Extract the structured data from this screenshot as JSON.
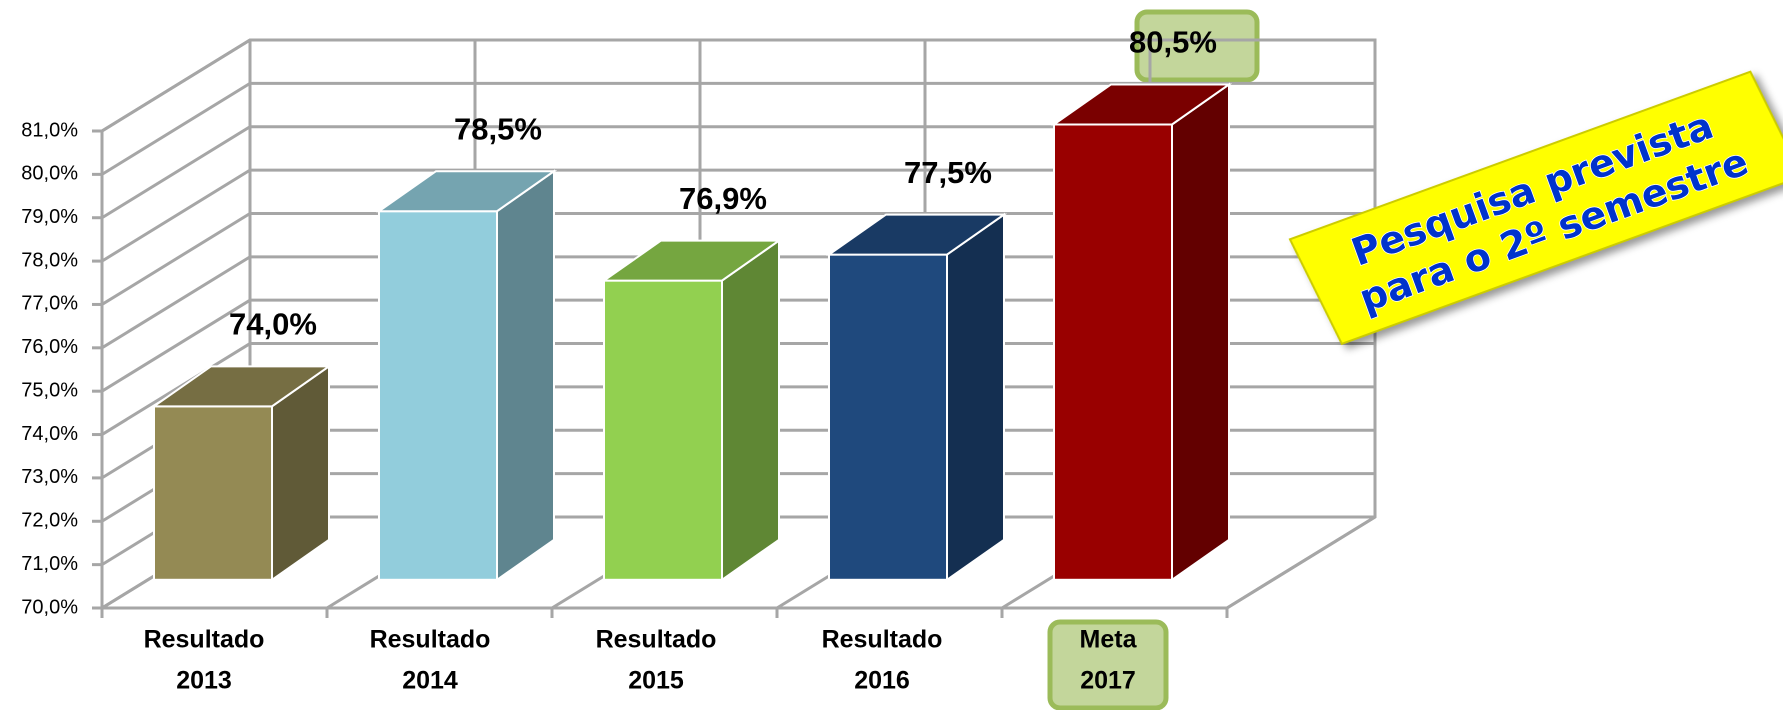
{
  "chart_data": {
    "type": "bar3d",
    "categories": [
      [
        "Resultado",
        "2013"
      ],
      [
        "Resultado",
        "2014"
      ],
      [
        "Resultado",
        "2015"
      ],
      [
        "Resultado",
        "2016"
      ],
      [
        "Meta",
        "2017"
      ]
    ],
    "values": [
      74.0,
      78.5,
      76.9,
      77.5,
      80.5
    ],
    "value_labels": [
      "74,0%",
      "78,5%",
      "76,9%",
      "77,5%",
      "80,5%"
    ],
    "colors": [
      "#948a54",
      "#92cddc",
      "#92d050",
      "#1f497d",
      "#990000"
    ],
    "ylim": [
      70,
      81
    ],
    "yticks": [
      {
        "value": 70,
        "label": "70,0%"
      },
      {
        "value": 71,
        "label": "71,0%"
      },
      {
        "value": 72,
        "label": "72,0%"
      },
      {
        "value": 73,
        "label": "73,0%"
      },
      {
        "value": 74,
        "label": "74,0%"
      },
      {
        "value": 75,
        "label": "75,0%"
      },
      {
        "value": 76,
        "label": "76,0%"
      },
      {
        "value": 77,
        "label": "77,0%"
      },
      {
        "value": 78,
        "label": "78,0%"
      },
      {
        "value": 79,
        "label": "79,0%"
      },
      {
        "value": 80,
        "label": "80,0%"
      },
      {
        "value": 81,
        "label": "81,0%"
      }
    ],
    "grid": true,
    "annotation": [
      "Pesquisa prevista",
      "para o 2º semestre"
    ]
  }
}
